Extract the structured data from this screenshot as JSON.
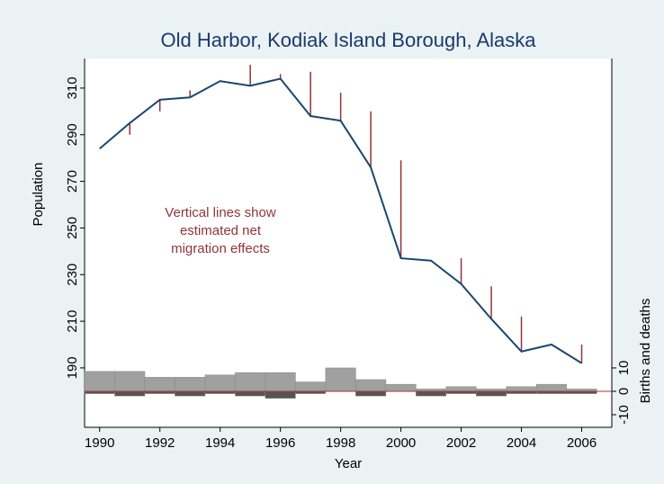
{
  "chart_data": {
    "type": "combo",
    "title": "Old Harbor, Kodiak Island Borough, Alaska",
    "x_label": "Year",
    "y_label": "Population",
    "y2_label": "Births and deaths",
    "annotation": [
      "Vertical lines show",
      "estimated net",
      "migration effects"
    ],
    "annotation_color": "#90353b",
    "x": [
      1990,
      1991,
      1992,
      1993,
      1994,
      1995,
      1996,
      1997,
      1998,
      1999,
      2000,
      2001,
      2002,
      2003,
      2004,
      2005,
      2006
    ],
    "xlim": [
      1989.5,
      2007
    ],
    "xticks": [
      1990,
      1992,
      1994,
      1996,
      1998,
      2000,
      2002,
      2004,
      2006
    ],
    "ylim": [
      164.5,
      322.7
    ],
    "yticks": [
      190,
      210,
      230,
      250,
      270,
      290,
      310
    ],
    "y2lim": [
      -15.4,
      142.3
    ],
    "y2ticks": [
      -10,
      0,
      10
    ],
    "zero_line_color": "#b0303a",
    "series": [
      {
        "type": "bar",
        "axis": "y2",
        "color": "#a0a0a0",
        "values": [
          8.5,
          8.5,
          6,
          6,
          7,
          8,
          8,
          4,
          10,
          5,
          3,
          1,
          2,
          1,
          2,
          3,
          1
        ]
      },
      {
        "type": "bar",
        "axis": "y2",
        "color": "#555555",
        "values": [
          -1,
          -2,
          -1,
          -2,
          -1,
          -2,
          -3,
          -1,
          0,
          -2,
          0,
          -2,
          -1,
          -2,
          -1,
          -1,
          -1
        ]
      },
      {
        "type": "line",
        "color": "#1a476f",
        "values": [
          284,
          295,
          305,
          306,
          313,
          311,
          314,
          298,
          296,
          276,
          237,
          236,
          226,
          211,
          197,
          200,
          192
        ]
      },
      {
        "type": "offset",
        "color": "#90353b",
        "base": 2,
        "values": [
          null,
          -5,
          -5,
          3,
          0,
          9,
          2,
          19,
          12,
          24,
          42,
          0,
          11,
          14,
          15,
          0,
          8
        ]
      }
    ]
  }
}
